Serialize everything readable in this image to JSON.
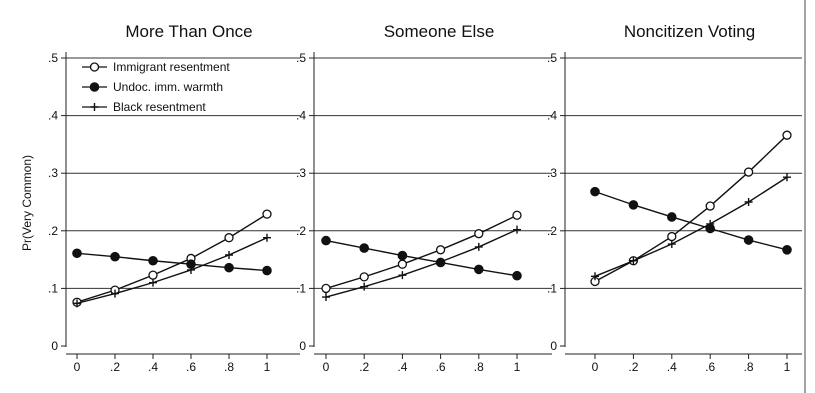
{
  "chart_data": [
    {
      "type": "line",
      "title": "More Than Once",
      "ylabel": "Pr(Very Common)",
      "xlabel": "",
      "x": [
        0,
        0.2,
        0.4,
        0.6,
        0.8,
        1
      ],
      "xticks": [
        "0",
        ".2",
        ".4",
        ".6",
        ".8",
        "1"
      ],
      "yticks": [
        "0",
        ".1",
        ".2",
        ".3",
        ".4",
        ".5"
      ],
      "ylim": [
        0,
        0.5
      ],
      "grid": true,
      "legend": "top-left",
      "series": [
        {
          "name": "Immigrant resentment",
          "marker": "hollow-circle",
          "values": [
            0.076,
            0.097,
            0.123,
            0.152,
            0.188,
            0.229
          ]
        },
        {
          "name": "Undoc. imm. warmth",
          "marker": "filled-circle",
          "values": [
            0.161,
            0.155,
            0.148,
            0.142,
            0.136,
            0.131
          ]
        },
        {
          "name": "Black resentment",
          "marker": "plus",
          "values": [
            0.074,
            0.091,
            0.11,
            0.132,
            0.158,
            0.188
          ]
        }
      ]
    },
    {
      "type": "line",
      "title": "Someone Else",
      "x": [
        0,
        0.2,
        0.4,
        0.6,
        0.8,
        1
      ],
      "xticks": [
        "0",
        ".2",
        ".4",
        ".6",
        ".8",
        "1"
      ],
      "yticks": [
        "0",
        ".1",
        ".2",
        ".3",
        ".4",
        ".5"
      ],
      "ylim": [
        0,
        0.5
      ],
      "grid": true,
      "series": [
        {
          "marker": "hollow-circle",
          "values": [
            0.1,
            0.12,
            0.142,
            0.167,
            0.195,
            0.227
          ]
        },
        {
          "marker": "filled-circle",
          "values": [
            0.183,
            0.17,
            0.157,
            0.145,
            0.133,
            0.122
          ]
        },
        {
          "marker": "plus",
          "values": [
            0.085,
            0.103,
            0.123,
            0.146,
            0.172,
            0.202
          ]
        }
      ]
    },
    {
      "type": "line",
      "title": "Noncitizen Voting",
      "x": [
        0,
        0.2,
        0.4,
        0.6,
        0.8,
        1
      ],
      "xticks": [
        "0",
        ".2",
        ".4",
        ".6",
        ".8",
        "1"
      ],
      "yticks": [
        "0",
        ".1",
        ".2",
        ".3",
        ".4",
        ".5"
      ],
      "ylim": [
        0,
        0.5
      ],
      "grid": true,
      "series": [
        {
          "marker": "hollow-circle",
          "values": [
            0.112,
            0.148,
            0.19,
            0.243,
            0.302,
            0.366
          ]
        },
        {
          "marker": "filled-circle",
          "values": [
            0.268,
            0.245,
            0.224,
            0.204,
            0.184,
            0.167
          ]
        },
        {
          "marker": "plus",
          "values": [
            0.121,
            0.148,
            0.177,
            0.212,
            0.25,
            0.293
          ]
        }
      ]
    }
  ]
}
